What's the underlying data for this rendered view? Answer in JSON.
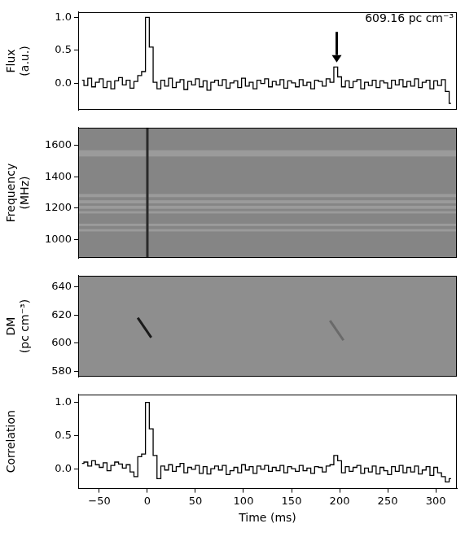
{
  "chart_data": [
    {
      "type": "line",
      "ylabel": [
        "Flux",
        "(a.u.)"
      ],
      "tick_labels": "y",
      "xlim": [
        -72,
        322
      ],
      "xticks": [
        {
          "value": -50,
          "label": "−50"
        },
        0,
        50,
        100,
        150,
        200,
        250,
        300
      ],
      "ylim": [
        -0.4,
        1.08
      ],
      "yticks": [
        {
          "value": 0,
          "label": "0.0"
        },
        {
          "value": 0.5,
          "label": "0.5"
        },
        {
          "value": 1,
          "label": "1.0"
        }
      ],
      "annotations": [
        {
          "text": "609.16 pc cm⁻³",
          "arrow_x": 197,
          "arrow_from": 0.78,
          "arrow_to": 0.32
        }
      ],
      "x": [
        -68,
        -64,
        -60,
        -56,
        -52,
        -48,
        -44,
        -40,
        -36,
        -32,
        -28,
        -24,
        -20,
        -16,
        -12,
        -8,
        -4,
        0,
        4,
        8,
        12,
        16,
        20,
        24,
        28,
        32,
        36,
        40,
        44,
        48,
        52,
        56,
        60,
        64,
        68,
        72,
        76,
        80,
        84,
        88,
        92,
        96,
        100,
        104,
        108,
        112,
        116,
        120,
        124,
        128,
        132,
        136,
        140,
        144,
        148,
        152,
        156,
        160,
        164,
        168,
        172,
        176,
        180,
        184,
        188,
        192,
        196,
        200,
        204,
        208,
        212,
        216,
        220,
        224,
        228,
        232,
        236,
        240,
        244,
        248,
        252,
        256,
        260,
        264,
        268,
        272,
        276,
        280,
        284,
        288,
        292,
        296,
        300,
        304,
        308,
        312,
        316
      ],
      "series": [
        {
          "color": "#000000",
          "line_style": "steps",
          "values": [
            0.05,
            -0.03,
            0.08,
            -0.05,
            0.02,
            0.07,
            -0.06,
            0.03,
            -0.08,
            0.04,
            0.09,
            -0.02,
            0.05,
            -0.07,
            0.03,
            0.12,
            0.18,
            1.0,
            0.55,
            0.02,
            -0.08,
            0.05,
            -0.04,
            0.08,
            -0.06,
            0.02,
            0.06,
            -0.09,
            0.03,
            -0.02,
            0.07,
            -0.05,
            0.04,
            -0.1,
            0.02,
            0.05,
            -0.03,
            0.06,
            -0.07,
            0.01,
            0.04,
            -0.06,
            0.08,
            -0.04,
            0.02,
            -0.08,
            0.05,
            0.0,
            0.07,
            -0.05,
            0.03,
            -0.02,
            0.06,
            -0.07,
            0.04,
            0.01,
            -0.05,
            0.06,
            -0.03,
            0.02,
            -0.08,
            0.05,
            0.03,
            -0.04,
            0.07,
            0.02,
            0.25,
            0.1,
            -0.05,
            0.04,
            -0.06,
            0.03,
            0.06,
            -0.08,
            0.02,
            -0.03,
            0.05,
            -0.06,
            0.04,
            0.01,
            -0.07,
            0.05,
            -0.02,
            0.06,
            -0.05,
            0.03,
            -0.04,
            0.07,
            -0.06,
            0.02,
            0.05,
            -0.08,
            0.04,
            -0.03,
            0.06,
            -0.12,
            -0.3
          ]
        }
      ]
    },
    {
      "type": "image",
      "ylabel": [
        "Frequency",
        "(MHz)"
      ],
      "tick_labels": "y",
      "xlim": [
        -72,
        322
      ],
      "xticks": [
        {
          "value": -50,
          "label": "−50"
        },
        0,
        50,
        100,
        150,
        200,
        250,
        300
      ],
      "ylim": [
        880,
        1715
      ],
      "yticks": [
        1000,
        1200,
        1400,
        1600
      ],
      "series": [
        {
          "type": "band",
          "color": "#9b9b9b",
          "ranges": [
            [
              1530,
              1570
            ],
            [
              1270,
              1290
            ],
            [
              1230,
              1250
            ],
            [
              1195,
              1215
            ],
            [
              1165,
              1180
            ],
            [
              1085,
              1100
            ],
            [
              1050,
              1065
            ]
          ]
        },
        {
          "type": "line",
          "color": "#2a2a2a",
          "x": [
            0,
            0
          ],
          "values": [
            880,
            1715
          ]
        }
      ]
    },
    {
      "type": "image",
      "ylabel": [
        "DM",
        "(pc cm⁻³)"
      ],
      "tick_labels": "y",
      "xlim": [
        -72,
        322
      ],
      "xticks": [
        {
          "value": -50,
          "label": "−50"
        },
        0,
        50,
        100,
        150,
        200,
        250,
        300
      ],
      "ylim": [
        576,
        648
      ],
      "yticks": [
        580,
        600,
        620,
        640
      ],
      "series": [
        {
          "type": "line",
          "color": "#1a1a1a",
          "x": [
            -10,
            4
          ],
          "values": [
            618,
            604
          ]
        },
        {
          "type": "line",
          "color": "#6a6a6a",
          "x": [
            190,
            204
          ],
          "values": [
            616,
            602
          ]
        }
      ]
    },
    {
      "type": "line",
      "ylabel": "Correlation",
      "xlabel": "Time (ms)",
      "xlim": [
        -72,
        322
      ],
      "xticks": [
        {
          "value": -50,
          "label": "−50"
        },
        0,
        50,
        100,
        150,
        200,
        250,
        300
      ],
      "ylim": [
        -0.3,
        1.12
      ],
      "yticks": [
        {
          "value": 0,
          "label": "0.0"
        },
        {
          "value": 0.5,
          "label": "0.5"
        },
        {
          "value": 1,
          "label": "1.0"
        }
      ],
      "x": [
        -68,
        -64,
        -60,
        -56,
        -52,
        -48,
        -44,
        -40,
        -36,
        -32,
        -28,
        -24,
        -20,
        -16,
        -12,
        -8,
        -4,
        0,
        4,
        8,
        12,
        16,
        20,
        24,
        28,
        32,
        36,
        40,
        44,
        48,
        52,
        56,
        60,
        64,
        68,
        72,
        76,
        80,
        84,
        88,
        92,
        96,
        100,
        104,
        108,
        112,
        116,
        120,
        124,
        128,
        132,
        136,
        140,
        144,
        148,
        152,
        156,
        160,
        164,
        168,
        172,
        176,
        180,
        184,
        188,
        192,
        196,
        200,
        204,
        208,
        212,
        216,
        220,
        224,
        228,
        232,
        236,
        240,
        244,
        248,
        252,
        256,
        260,
        264,
        268,
        272,
        276,
        280,
        284,
        288,
        292,
        296,
        300,
        304,
        308,
        312,
        316
      ],
      "series": [
        {
          "color": "#000000",
          "line_style": "steps",
          "values": [
            0.08,
            0.1,
            0.04,
            0.12,
            0.06,
            0.02,
            0.09,
            -0.03,
            0.05,
            0.1,
            0.07,
            0.01,
            0.06,
            -0.05,
            -0.12,
            0.18,
            0.22,
            1.0,
            0.6,
            0.2,
            -0.15,
            0.04,
            -0.02,
            0.06,
            -0.04,
            0.03,
            0.08,
            -0.06,
            0.02,
            -0.01,
            0.05,
            -0.07,
            0.03,
            -0.08,
            0.0,
            0.04,
            -0.02,
            0.05,
            -0.09,
            -0.03,
            0.02,
            -0.06,
            0.06,
            -0.02,
            0.03,
            -0.07,
            0.04,
            -0.01,
            0.05,
            -0.04,
            0.02,
            -0.03,
            0.05,
            -0.06,
            0.03,
            0.0,
            -0.04,
            0.05,
            -0.03,
            0.01,
            -0.07,
            0.03,
            0.02,
            -0.05,
            0.04,
            0.06,
            0.2,
            0.12,
            -0.06,
            0.03,
            -0.04,
            0.02,
            0.05,
            -0.07,
            0.01,
            -0.05,
            0.04,
            -0.08,
            0.02,
            -0.03,
            -0.09,
            0.03,
            -0.04,
            0.05,
            -0.06,
            0.02,
            -0.05,
            0.04,
            -0.08,
            -0.02,
            0.03,
            -0.1,
            0.02,
            -0.06,
            -0.12,
            -0.2,
            -0.15
          ]
        }
      ]
    }
  ]
}
